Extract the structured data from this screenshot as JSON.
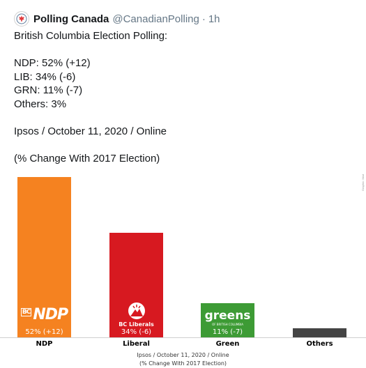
{
  "tweet": {
    "name": "Polling Canada",
    "handle": "@CanadianPolling",
    "separator": "·",
    "time": "1h",
    "lines": [
      "British Columbia Election Polling:",
      "",
      "NDP: 52% (+12)",
      "LIB: 34% (-6)",
      "GRN: 11% (-7)",
      "Others: 3%",
      "",
      "Ipsos / October 11, 2020 / Online",
      "",
      "(% Change With 2017 Election)"
    ]
  },
  "chart_data": {
    "type": "bar",
    "categories": [
      "NDP",
      "Liberal",
      "Green",
      "Others"
    ],
    "values": [
      52,
      34,
      11,
      3
    ],
    "value_labels": [
      "52% (+12)",
      "34% (-6)",
      "11% (-7)",
      ""
    ],
    "colors": [
      "#f58220",
      "#d71920",
      "#3d9b35",
      "#444444"
    ],
    "logos": {
      "ndp": "NDP",
      "ndp_bc": "BC",
      "liberal": "BC Liberals",
      "green": "greens",
      "green_sub": "OF BRITISH COLUMBIA"
    },
    "footer_line1": "Ipsos / October 11, 2020 / Online",
    "footer_line2": "(% Change With 2017 Election)",
    "watermark": "Graphic: Mad",
    "ylim": [
      0,
      52
    ]
  },
  "icons": {
    "avatar": "maple-leaf-logo-icon"
  }
}
